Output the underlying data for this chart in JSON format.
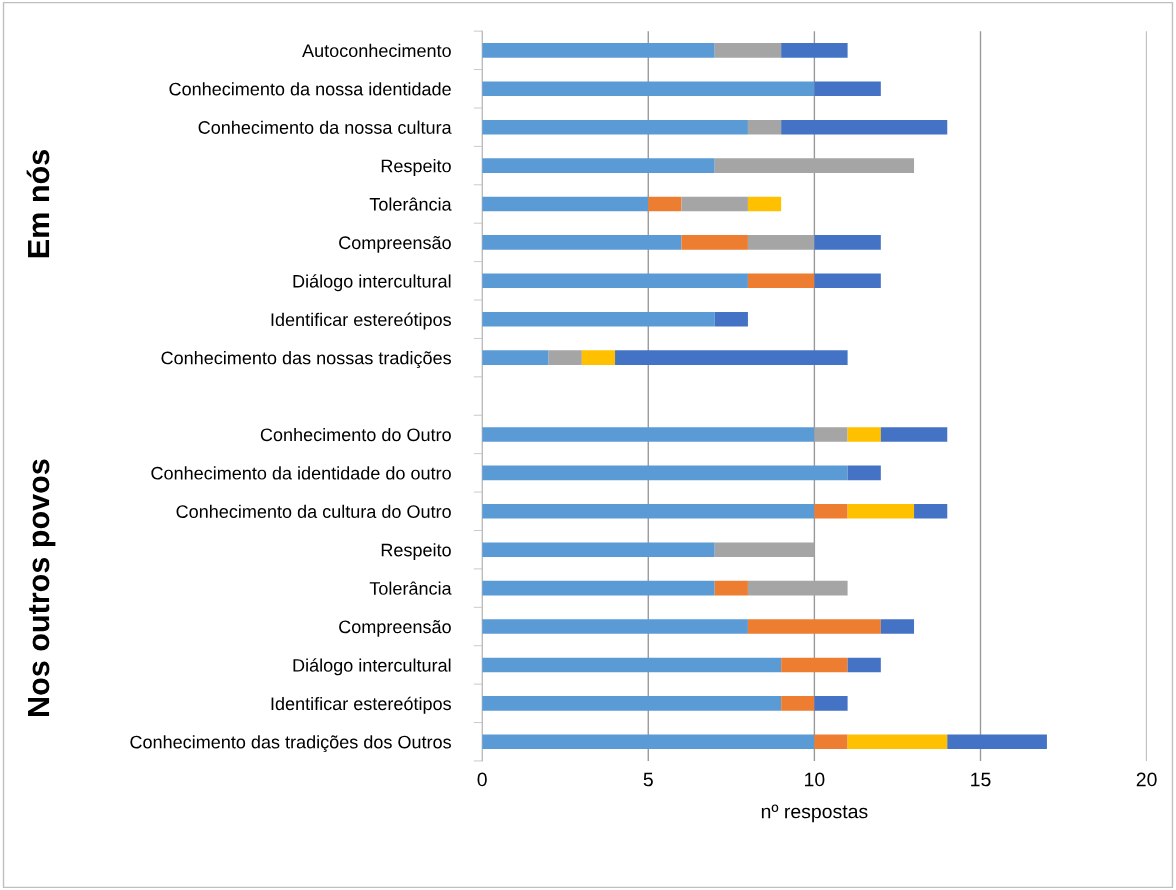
{
  "chart_data": {
    "type": "bar",
    "orientation": "horizontal",
    "stacked": true,
    "xlabel": "nº respostas",
    "categories": [
      "Autoconhecimento",
      "Conhecimento da nossa identidade",
      "Conhecimento da nossa cultura",
      "Respeito",
      "Tolerância",
      "Compreensão",
      "Diálogo intercultural",
      "Identificar estereótipos",
      "Conhecimento das nossas tradições",
      null,
      "Conhecimento do Outro",
      "Conhecimento da identidade do outro",
      "Conhecimento da cultura do Outro",
      "Respeito",
      "Tolerância",
      "Compreensão",
      "Diálogo intercultural",
      "Identificar estereótipos",
      "Conhecimento das tradições dos Outros"
    ],
    "series": [
      {
        "color": "#5b9bd5",
        "values": [
          7,
          10,
          8,
          7,
          5,
          6,
          8,
          7,
          2,
          null,
          10,
          11,
          10,
          7,
          7,
          8,
          9,
          9,
          10
        ]
      },
      {
        "color": "#ed7d31",
        "values": [
          null,
          null,
          null,
          null,
          1,
          2,
          2,
          null,
          null,
          null,
          null,
          null,
          1,
          null,
          1,
          4,
          2,
          1,
          1
        ]
      },
      {
        "color": "#a5a5a5",
        "values": [
          2,
          null,
          1,
          6,
          2,
          2,
          null,
          null,
          1,
          null,
          1,
          null,
          null,
          3,
          3,
          null,
          null,
          null,
          null
        ]
      },
      {
        "color": "#ffc000",
        "values": [
          null,
          null,
          null,
          null,
          1,
          null,
          null,
          null,
          1,
          null,
          1,
          null,
          2,
          null,
          null,
          null,
          null,
          null,
          3
        ]
      },
      {
        "color": "#4472c4",
        "values": [
          2,
          2,
          5,
          null,
          null,
          2,
          2,
          1,
          7,
          null,
          2,
          1,
          1,
          null,
          null,
          1,
          1,
          1,
          3
        ]
      }
    ],
    "xlim": [
      0,
      20
    ],
    "xticks": [
      0,
      5,
      10,
      15,
      20
    ],
    "grid": "x",
    "legend": false,
    "annotations": [
      "Em nós",
      "Nos outros povos"
    ]
  }
}
